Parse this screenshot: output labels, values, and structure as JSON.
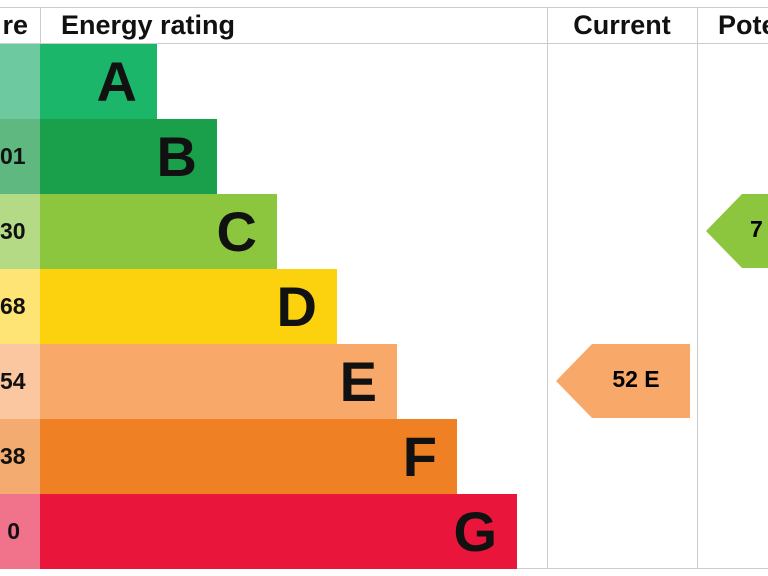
{
  "header": {
    "score": "re",
    "rating": "Energy rating",
    "current": "Current",
    "potential": "Pote"
  },
  "rows": [
    {
      "band": "A"
    },
    {
      "score": "01",
      "band": "B"
    },
    {
      "score": "30",
      "band": "C"
    },
    {
      "score": "68",
      "band": "D"
    },
    {
      "score": "54",
      "band": "E"
    },
    {
      "score": "38",
      "band": "F"
    },
    {
      "score": "0",
      "band": "G"
    }
  ],
  "current": {
    "label": "52 E"
  },
  "potential": {
    "label": "7"
  }
}
